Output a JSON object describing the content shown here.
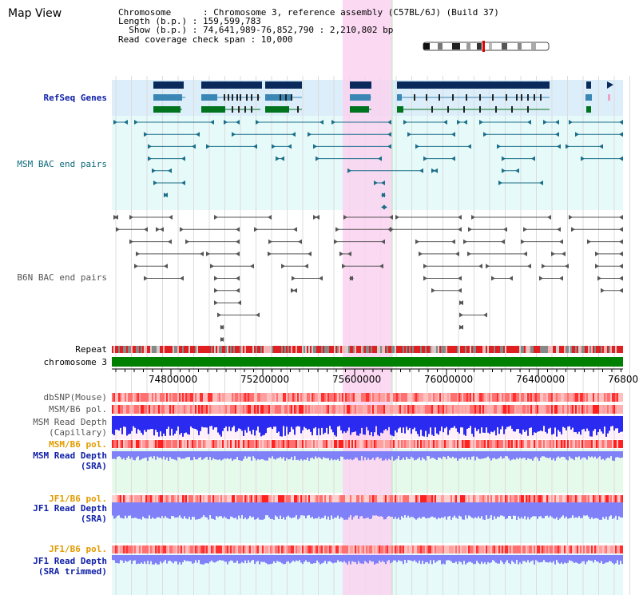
{
  "title": "Map View",
  "info": {
    "chromosome_line": "Chromosome      : Chromosome 3, reference assembly (C57BL/6J) (Build 37)",
    "length_line": "Length (b.p.) : 159,599,783",
    "show_line": "  Show (b.p.) : 74,641,989-76,852,790 : 2,210,802 bp",
    "span_line": "Read coverage check span : 10,000"
  },
  "tracks": {
    "refseq": "RefSeq Genes",
    "msm_bac": "MSM BAC end pairs",
    "b6n_bac": "B6N BAC end pairs",
    "repeat": "Repeat",
    "chromosome": "chromosome 3",
    "dbsnp": "dbSNP(Mouse)",
    "msm_pol1": "MSM/B6 pol.",
    "msm_depth_cap": "MSM Read Depth\n(Capillary)",
    "msm_pol2": "MSM/B6 pol.",
    "msm_depth_sra": "MSM Read Depth\n(SRA)",
    "jf1_pol1": "JF1/B6 pol.",
    "jf1_depth_sra": "JF1 Read Depth\n(SRA)",
    "jf1_pol2": "JF1/B6 pol.",
    "jf1_depth_trim": "JF1 Read Depth\n(SRA trimmed)"
  },
  "axis": {
    "ticks": [
      "74800000",
      "75200000",
      "75600000",
      "76000000",
      "76400000",
      "76800"
    ]
  },
  "colors": {
    "highlight": "#fad2f0",
    "refseq_bg": "#dbeefa",
    "teal_bg": "#e6fafa",
    "green_bg": "#e6faec",
    "gene_dark": "#0b2a5c",
    "gene_mid": "#3a86b4",
    "gene_green": "#00731e",
    "chromosome": "#008000",
    "depth_blue": "#2a2af0",
    "depth_light": "#8080f8",
    "snp_red": "#ff2020"
  }
}
